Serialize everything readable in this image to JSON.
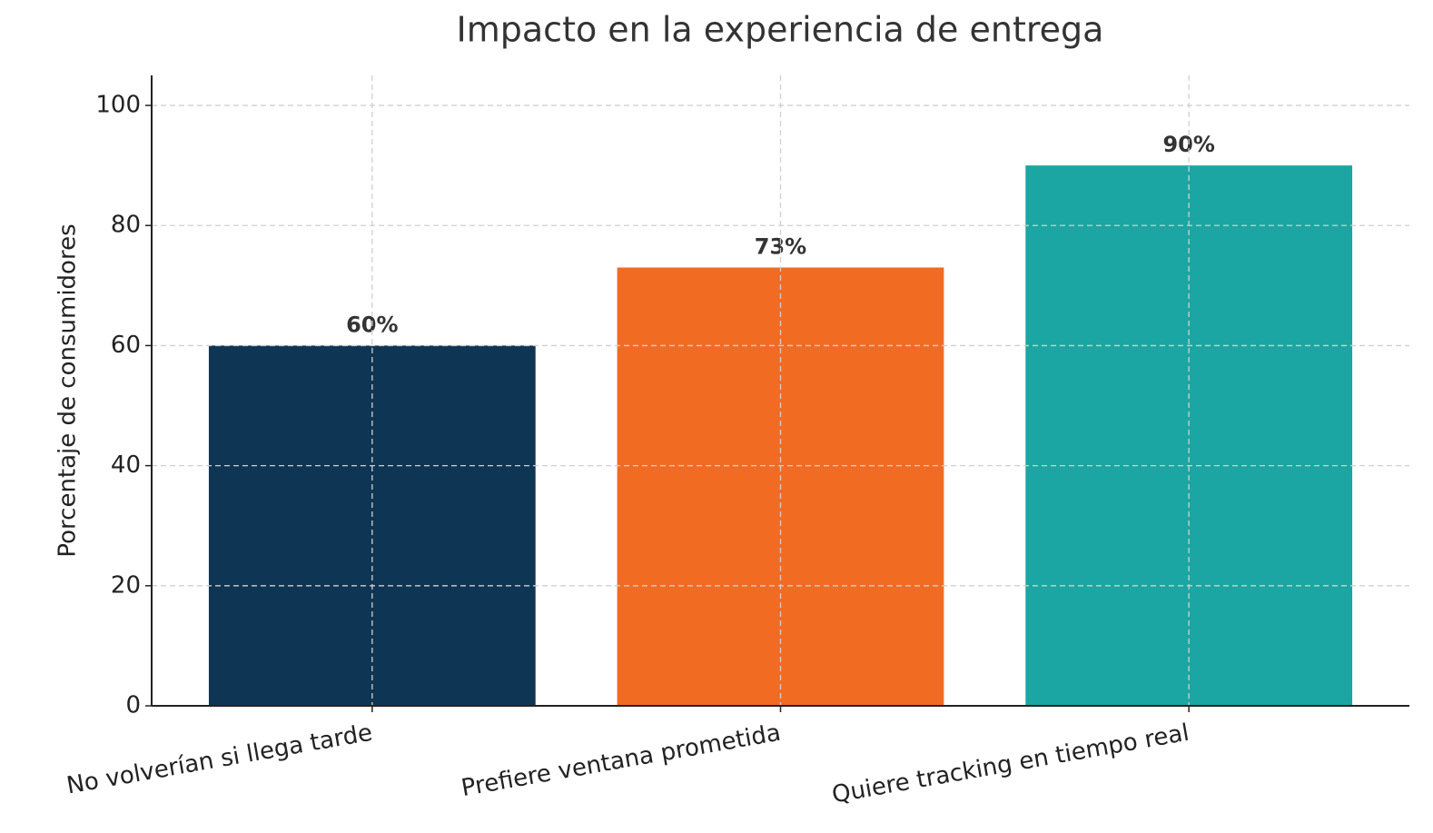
{
  "chart_data": {
    "type": "bar",
    "title": "Impacto en la experiencia de entrega",
    "ylabel": "Porcentaje de consumidores",
    "categories": [
      "No volverían si llega tarde",
      "Prefiere ventana prometida",
      "Quiere tracking en tiempo real"
    ],
    "values": [
      60,
      73,
      90
    ],
    "value_labels": [
      "60%",
      "73%",
      "90%"
    ],
    "colors": [
      "#0f3554",
      "#f26b23",
      "#1ba6a3"
    ],
    "ylim": [
      0,
      105
    ],
    "yticks": [
      0,
      20,
      40,
      60,
      80,
      100
    ],
    "grid": true
  }
}
